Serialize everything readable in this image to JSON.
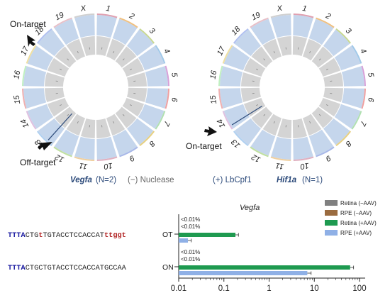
{
  "circos": {
    "left": {
      "chromosomes": [
        "1",
        "2",
        "3",
        "4",
        "5",
        "6",
        "7",
        "8",
        "9",
        "10",
        "11",
        "12",
        "13",
        "14",
        "15",
        "16",
        "17",
        "18",
        "19",
        "X"
      ],
      "arrow_labels": {
        "on_target": "On-target",
        "off_target": "Off-target"
      },
      "caption_gene": "Vegfa",
      "caption_n": "(N=2)"
    },
    "right": {
      "chromosomes": [
        "1",
        "2",
        "3",
        "4",
        "5",
        "6",
        "7",
        "8",
        "9",
        "10",
        "11",
        "12",
        "13",
        "14",
        "15",
        "16",
        "17",
        "18",
        "19",
        "X"
      ],
      "arrow_labels": {
        "on_target": "On-target"
      },
      "caption_gene": "Hif1a",
      "caption_n": "(N=1)"
    },
    "legend": {
      "minus": "(−) Nuclease",
      "plus": "(+) LbCpf1"
    },
    "colors": {
      "outer_ring": "#c5d6ec",
      "inner_ring": "#d4d4d4",
      "caption": "#2c4a7a"
    }
  },
  "bar_chart": {
    "title": "Vegfa",
    "sequences": [
      {
        "pam": "TTTA",
        "protospacer": "CTG",
        "mm1": "t",
        "mid": "TGTACCTCCACCAT",
        "mm2": "ttggt",
        "label": "OT"
      },
      {
        "pam": "TTTA",
        "protospacer": "CTGCTGTACCTCCACCATGCCAA",
        "mm1": "",
        "mid": "",
        "mm2": "",
        "label": "ON"
      }
    ],
    "annotations": [
      "<0.01%",
      "<0.01%",
      "<0.01%",
      "<0.01%"
    ],
    "x_ticks": [
      "0.01",
      "0.1",
      "1",
      "10",
      "100"
    ],
    "legend": [
      "Retina (−AAV)",
      "RPE (−AAV)",
      "Retina (+AAV)",
      "RPE (+AAV)"
    ],
    "colors": {
      "retina_minus": "#808080",
      "rpe_minus": "#9a6b3f",
      "retina_plus": "#1e9a50",
      "rpe_plus": "#8fb0e6",
      "pam": "#1a1aa0",
      "mismatch": "#b02020"
    }
  },
  "chart_data": {
    "type": "bar",
    "orientation": "horizontal",
    "title": "Vegfa",
    "x_scale": "log",
    "xlim": [
      0.01,
      100
    ],
    "categories": [
      "OT",
      "ON"
    ],
    "series": [
      {
        "name": "Retina (−AAV)",
        "values": [
          0.01,
          0.01
        ]
      },
      {
        "name": "RPE (−AAV)",
        "values": [
          0.01,
          0.01
        ]
      },
      {
        "name": "Retina (+AAV)",
        "values": [
          0.18,
          62
        ]
      },
      {
        "name": "RPE (+AAV)",
        "values": [
          0.016,
          7
        ]
      }
    ],
    "errors": {
      "Retina (+AAV)": [
        0.03,
        12
      ],
      "RPE (+AAV)": [
        0.003,
        1.5
      ]
    }
  }
}
